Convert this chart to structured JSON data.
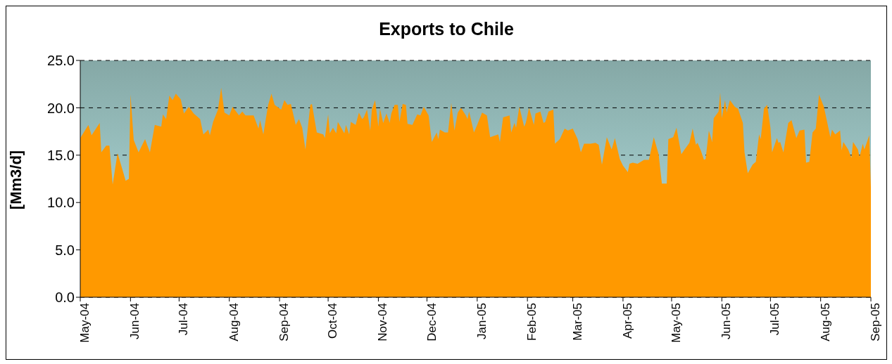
{
  "chart_data": {
    "type": "area",
    "title": "Exports to Chile",
    "ylabel": "[Mm3/d]",
    "x": [
      "2004-05-01",
      "2004-05-06",
      "2004-05-08",
      "2004-05-13",
      "2004-05-14",
      "2004-05-17",
      "2004-05-19",
      "2004-05-21",
      "2004-05-24",
      "2004-05-27",
      "2004-05-29",
      "2004-05-31",
      "2004-06-01",
      "2004-06-03",
      "2004-06-06",
      "2004-06-10",
      "2004-06-13",
      "2004-06-16",
      "2004-06-20",
      "2004-06-21",
      "2004-06-23",
      "2004-06-25",
      "2004-06-27",
      "2004-06-29",
      "2004-07-02",
      "2004-07-04",
      "2004-07-07",
      "2004-07-10",
      "2004-07-14",
      "2004-07-16",
      "2004-07-19",
      "2004-07-20",
      "2004-07-22",
      "2004-07-25",
      "2004-07-27",
      "2004-07-29",
      "2004-08-01",
      "2004-08-03",
      "2004-08-07",
      "2004-08-09",
      "2004-08-11",
      "2004-08-16",
      "2004-08-19",
      "2004-08-20",
      "2004-08-22",
      "2004-08-24",
      "2004-08-25",
      "2004-08-27",
      "2004-08-29",
      "2004-09-02",
      "2004-09-04",
      "2004-09-06",
      "2004-09-08",
      "2004-09-11",
      "2004-09-13",
      "2004-09-15",
      "2004-09-17",
      "2004-09-20",
      "2004-09-21",
      "2004-09-24",
      "2004-09-28",
      "2004-09-29",
      "2004-10-01",
      "2004-10-02",
      "2004-10-04",
      "2004-10-06",
      "2004-10-07",
      "2004-10-11",
      "2004-10-12",
      "2004-10-14",
      "2004-10-15",
      "2004-10-18",
      "2004-10-20",
      "2004-10-22",
      "2004-10-23",
      "2004-10-25",
      "2004-10-27",
      "2004-10-28",
      "2004-10-30",
      "2004-11-01",
      "2004-11-02",
      "2004-11-04",
      "2004-11-06",
      "2004-11-08",
      "2004-11-09",
      "2004-11-11",
      "2004-11-13",
      "2004-11-14",
      "2004-11-16",
      "2004-11-18",
      "2004-11-19",
      "2004-11-22",
      "2004-11-25",
      "2004-11-27",
      "2004-11-29",
      "2004-12-02",
      "2004-12-04",
      "2004-12-07",
      "2004-12-08",
      "2004-12-09",
      "2004-12-12",
      "2004-12-14",
      "2004-12-16",
      "2004-12-18",
      "2004-12-20",
      "2004-12-22",
      "2004-12-25",
      "2004-12-26",
      "2004-12-27",
      "2004-12-30",
      "2005-01-01",
      "2005-01-04",
      "2005-01-07",
      "2005-01-09",
      "2005-01-14",
      "2005-01-15",
      "2005-01-17",
      "2005-01-21",
      "2005-01-22",
      "2005-01-24",
      "2005-01-25",
      "2005-01-27",
      "2005-01-30",
      "2005-01-31",
      "2005-02-02",
      "2005-02-05",
      "2005-02-06",
      "2005-02-09",
      "2005-02-11",
      "2005-02-12",
      "2005-02-14",
      "2005-02-17",
      "2005-02-18",
      "2005-02-21",
      "2005-02-24",
      "2005-02-26",
      "2005-03-01",
      "2005-03-04",
      "2005-03-06",
      "2005-03-08",
      "2005-03-12",
      "2005-03-15",
      "2005-03-17",
      "2005-03-19",
      "2005-03-22",
      "2005-03-25",
      "2005-03-27",
      "2005-03-30",
      "2005-04-01",
      "2005-04-04",
      "2005-04-05",
      "2005-04-07",
      "2005-04-10",
      "2005-04-14",
      "2005-04-17",
      "2005-04-20",
      "2005-04-23",
      "2005-04-25",
      "2005-04-28",
      "2005-04-29",
      "2005-05-02",
      "2005-05-04",
      "2005-05-07",
      "2005-05-09",
      "2005-05-12",
      "2005-05-14",
      "2005-05-16",
      "2005-05-17",
      "2005-05-19",
      "2005-05-21",
      "2005-05-22",
      "2005-05-24",
      "2005-05-26",
      "2005-05-27",
      "2005-05-30",
      "2005-05-31",
      "2005-06-01",
      "2005-06-03",
      "2005-06-04",
      "2005-06-06",
      "2005-06-09",
      "2005-06-11",
      "2005-06-14",
      "2005-06-15",
      "2005-06-17",
      "2005-06-20",
      "2005-06-22",
      "2005-06-24",
      "2005-06-25",
      "2005-06-27",
      "2005-06-29",
      "2005-07-01",
      "2005-07-02",
      "2005-07-05",
      "2005-07-06",
      "2005-07-07",
      "2005-07-09",
      "2005-07-12",
      "2005-07-14",
      "2005-07-17",
      "2005-07-19",
      "2005-07-22",
      "2005-07-23",
      "2005-07-25",
      "2005-07-27",
      "2005-07-29",
      "2005-07-31",
      "2005-08-03",
      "2005-08-07",
      "2005-08-08",
      "2005-08-10",
      "2005-08-13",
      "2005-08-14",
      "2005-08-15",
      "2005-08-18",
      "2005-08-20",
      "2005-08-21",
      "2005-08-24",
      "2005-08-25",
      "2005-08-27",
      "2005-08-28",
      "2005-08-31",
      "2005-09-01"
    ],
    "series": [
      {
        "color": "#ff9900",
        "values": [
          16.8,
          18.2,
          17.1,
          18.4,
          15.3,
          16.0,
          16.0,
          11.9,
          15.2,
          13.5,
          12.3,
          12.5,
          21.4,
          16.6,
          15.3,
          16.7,
          15.3,
          18.2,
          18.0,
          19.3,
          18.8,
          21.3,
          20.8,
          21.5,
          20.9,
          19.4,
          20.1,
          19.4,
          18.8,
          17.2,
          17.7,
          17.1,
          18.5,
          19.8,
          22.1,
          19.5,
          19.2,
          20.1,
          19.2,
          19.6,
          19.2,
          19.2,
          17.8,
          18.7,
          17.2,
          19.3,
          20.3,
          21.5,
          20.3,
          19.8,
          20.8,
          20.3,
          20.4,
          18.2,
          18.8,
          17.9,
          15.6,
          20.3,
          20.4,
          17.4,
          17.2,
          16.8,
          19.3,
          17.3,
          17.9,
          17.3,
          18.5,
          17.3,
          18.2,
          17.2,
          18.5,
          18.2,
          19.5,
          18.8,
          19.0,
          19.8,
          17.6,
          19.8,
          20.8,
          18.0,
          19.9,
          18.4,
          19.4,
          18.4,
          19.4,
          20.3,
          20.3,
          18.5,
          20.4,
          20.3,
          18.3,
          18.2,
          19.3,
          19.2,
          20.1,
          19.2,
          16.4,
          17.4,
          16.7,
          17.7,
          17.4,
          17.4,
          20.5,
          17.6,
          19.5,
          20.0,
          19.2,
          18.8,
          19.6,
          17.4,
          18.2,
          19.5,
          19.2,
          16.9,
          17.2,
          16.4,
          19.0,
          19.2,
          17.4,
          18.4,
          17.9,
          20.1,
          18.0,
          18.4,
          20.0,
          18.2,
          19.4,
          19.6,
          18.4,
          18.5,
          19.6,
          19.8,
          16.2,
          16.7,
          17.8,
          17.6,
          17.8,
          16.7,
          15.3,
          16.2,
          16.2,
          16.3,
          16.1,
          14.0,
          16.9,
          15.6,
          16.8,
          14.6,
          13.9,
          13.2,
          14.1,
          14.2,
          14.1,
          14.5,
          14.5,
          16.9,
          15.1,
          12.0,
          12.0,
          16.7,
          16.9,
          17.9,
          15.1,
          15.6,
          16.3,
          17.8,
          16.1,
          16.3,
          15.5,
          14.5,
          14.6,
          17.6,
          16.4,
          18.9,
          19.6,
          21.6,
          18.9,
          20.8,
          19.5,
          20.8,
          20.1,
          19.9,
          18.4,
          15.3,
          13.1,
          14.0,
          14.3,
          17.2,
          16.7,
          19.9,
          20.3,
          17.9,
          15.3,
          16.8,
          16.3,
          16.4,
          15.3,
          18.4,
          18.7,
          16.8,
          17.6,
          17.7,
          14.2,
          14.3,
          17.4,
          17.8,
          21.4,
          20.1,
          16.9,
          17.7,
          17.2,
          17.6,
          15.5,
          16.4,
          15.6,
          14.7,
          16.4,
          15.6,
          14.8,
          16.2,
          15.6,
          17.1,
          11.6
        ]
      }
    ],
    "xlim": [
      "2004-05-01",
      "2005-09-01"
    ],
    "xticks": [
      {
        "value": "2004-05-01",
        "label": "May-04"
      },
      {
        "value": "2004-06-01",
        "label": "Jun-04"
      },
      {
        "value": "2004-07-01",
        "label": "Jul-04"
      },
      {
        "value": "2004-08-01",
        "label": "Aug-04"
      },
      {
        "value": "2004-09-01",
        "label": "Sep-04"
      },
      {
        "value": "2004-10-01",
        "label": "Oct-04"
      },
      {
        "value": "2004-11-01",
        "label": "Nov-04"
      },
      {
        "value": "2004-12-01",
        "label": "Dec-04"
      },
      {
        "value": "2005-01-01",
        "label": "Jan-05"
      },
      {
        "value": "2005-02-01",
        "label": "Feb-05"
      },
      {
        "value": "2005-03-01",
        "label": "Mar-05"
      },
      {
        "value": "2005-04-01",
        "label": "Apr-05"
      },
      {
        "value": "2005-05-01",
        "label": "May-05"
      },
      {
        "value": "2005-06-01",
        "label": "Jun-05"
      },
      {
        "value": "2005-07-01",
        "label": "Jul-05"
      },
      {
        "value": "2005-08-01",
        "label": "Aug-05"
      },
      {
        "value": "2005-09-01",
        "label": "Sep-05"
      }
    ],
    "ylim": [
      0,
      25
    ],
    "yticks": [
      {
        "value": 0,
        "label": "0.0"
      },
      {
        "value": 5,
        "label": "5.0"
      },
      {
        "value": 10,
        "label": "10.0"
      },
      {
        "value": 15,
        "label": "15.0"
      },
      {
        "value": 20,
        "label": "20.0"
      },
      {
        "value": 25,
        "label": "25.0"
      }
    ],
    "grid": "y",
    "legend": false
  }
}
